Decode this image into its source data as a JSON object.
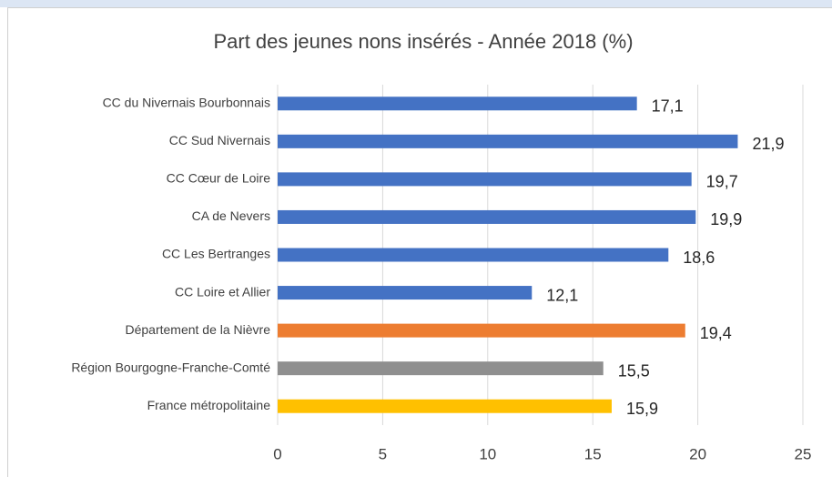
{
  "chart_data": {
    "type": "bar",
    "orientation": "horizontal",
    "title": "Part des jeunes nons insérés - Année 2018 (%)",
    "categories": [
      "CC du Nivernais Bourbonnais",
      "CC Sud Nivernais",
      "CC Cœur de Loire",
      "CA de Nevers",
      "CC Les Bertranges",
      "CC Loire et Allier",
      "Département de la Nièvre",
      "Région Bourgogne-Franche-Comté",
      "France métropolitaine"
    ],
    "values": [
      17.1,
      21.9,
      19.7,
      19.9,
      18.6,
      12.1,
      19.4,
      15.5,
      15.9
    ],
    "value_labels": [
      "17,1",
      "21,9",
      "19,7",
      "19,9",
      "18,6",
      "12,1",
      "19,4",
      "15,5",
      "15,9"
    ],
    "colors": [
      "#4472c4",
      "#4472c4",
      "#4472c4",
      "#4472c4",
      "#4472c4",
      "#4472c4",
      "#ed7d31",
      "#8f8f8f",
      "#ffc000"
    ],
    "xlim": [
      0,
      25
    ],
    "xticks": [
      0,
      5,
      10,
      15,
      20,
      25
    ],
    "grid": true
  }
}
